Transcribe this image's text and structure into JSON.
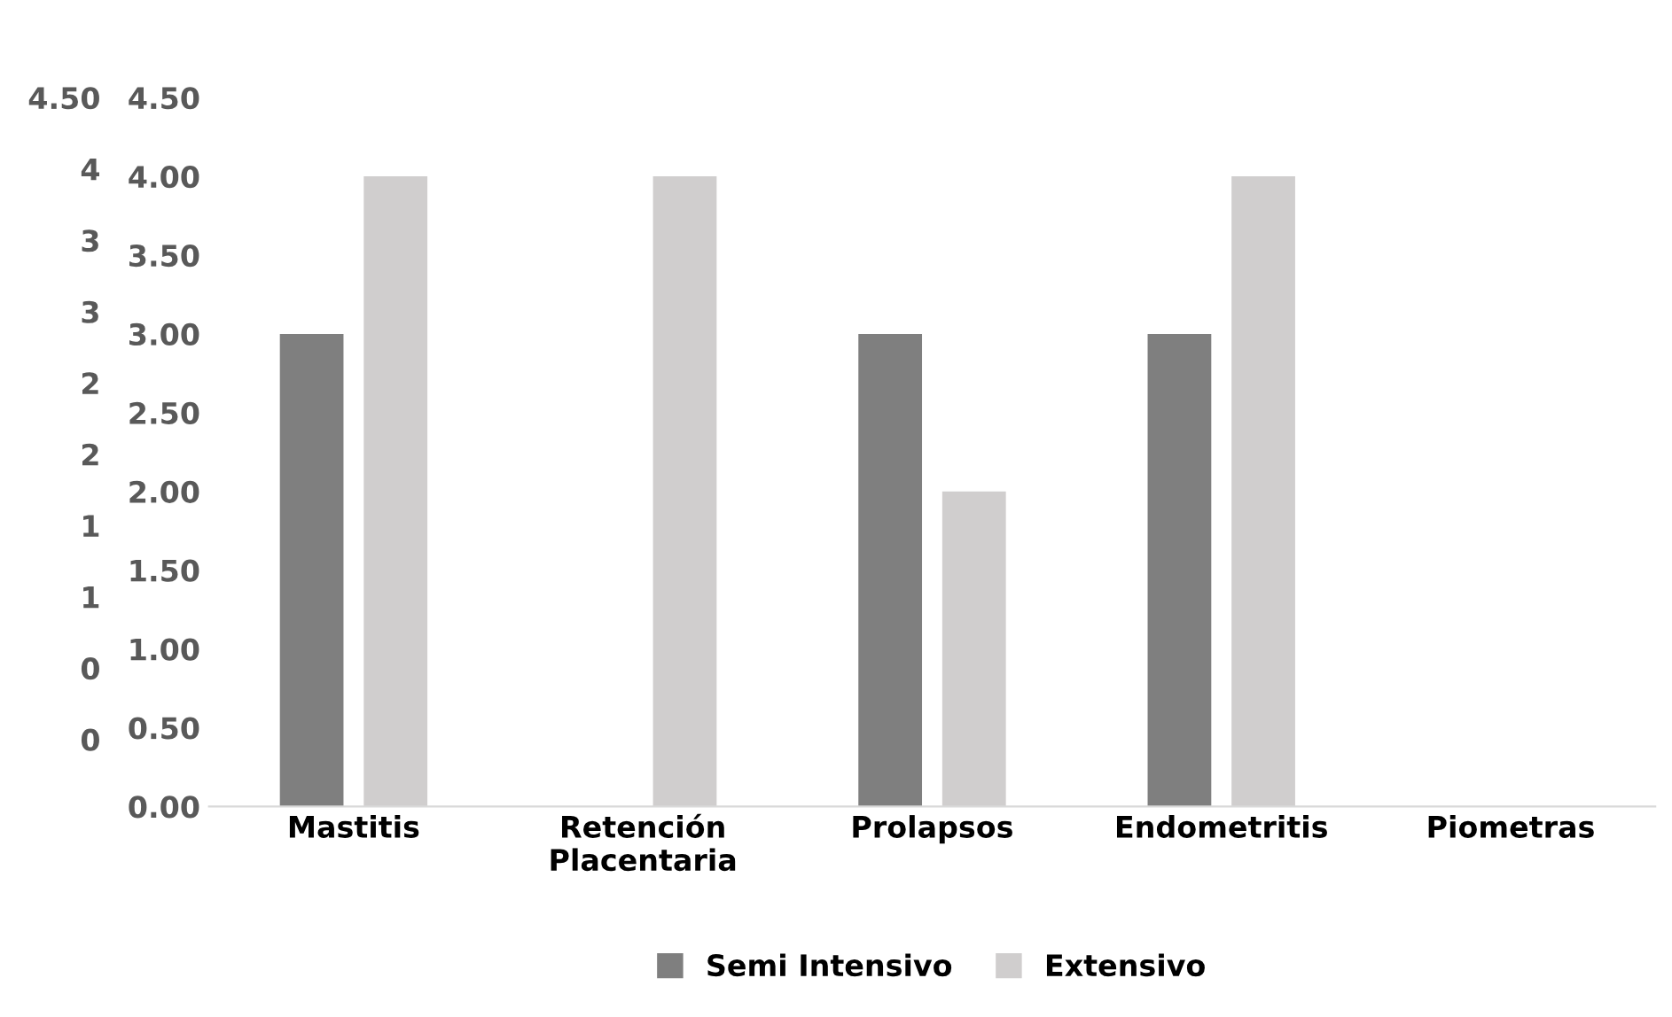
{
  "chart_data": {
    "type": "bar",
    "categories": [
      "Mastitis",
      "Retención\nPlacentaria",
      "Prolapsos",
      "Endometritis",
      "Piometras"
    ],
    "series": [
      {
        "name": "Semi Intensivo",
        "color": "#7f7f7f",
        "values": [
          3,
          0,
          3,
          3,
          0
        ]
      },
      {
        "name": "Extensivo",
        "color": "#d0cece",
        "values": [
          4,
          4,
          2,
          4,
          0
        ]
      }
    ],
    "ylim": [
      0,
      4.5
    ],
    "yticks": [
      {
        "value": 0,
        "label": "0.00"
      },
      {
        "value": 0.5,
        "label": "0.50"
      },
      {
        "value": 1,
        "label": "1.00"
      },
      {
        "value": 1.5,
        "label": "1.50"
      },
      {
        "value": 2,
        "label": "2.00"
      },
      {
        "value": 2.5,
        "label": "2.50"
      },
      {
        "value": 3,
        "label": "3.00"
      },
      {
        "value": 3.5,
        "label": "3.50"
      },
      {
        "value": 4,
        "label": "4.00"
      },
      {
        "value": 4.5,
        "label": "4.50"
      }
    ],
    "y2lim": [
      -0.47,
      4.5
    ],
    "y2ticks": [
      {
        "value": 0,
        "label": "0"
      },
      {
        "value": 0.5,
        "label": "0"
      },
      {
        "value": 1,
        "label": "1"
      },
      {
        "value": 1.5,
        "label": "1"
      },
      {
        "value": 2,
        "label": "2"
      },
      {
        "value": 2.5,
        "label": "2"
      },
      {
        "value": 3,
        "label": "3"
      },
      {
        "value": 3.5,
        "label": "3"
      },
      {
        "value": 4,
        "label": "4"
      },
      {
        "value": 4.5,
        "label": "4.50"
      }
    ],
    "grid": false,
    "legend": "bottom"
  }
}
